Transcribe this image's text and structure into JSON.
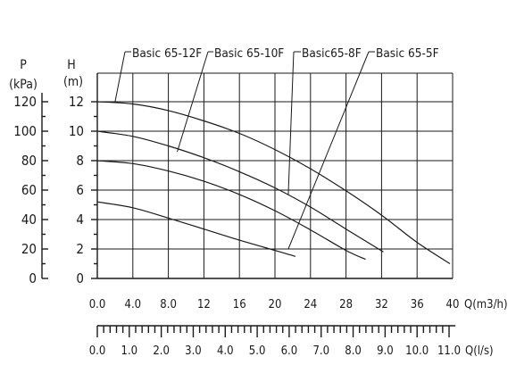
{
  "chart_data": {
    "type": "line",
    "axis_left_outer": {
      "title_line1": "P",
      "title_line2": "(kPa)",
      "ticks": [
        {
          "label": "120",
          "h": 12
        },
        {
          "label": "100",
          "h": 10
        },
        {
          "label": "80",
          "h": 8
        },
        {
          "label": "60",
          "h": 6
        },
        {
          "label": "40",
          "h": 4
        },
        {
          "label": "20",
          "h": 2
        },
        {
          "label": "0",
          "h": 0
        }
      ]
    },
    "axis_left_inner": {
      "title_line1": "H",
      "title_line2": "(m)",
      "ticks": [
        {
          "label": "12",
          "h": 12
        },
        {
          "label": "10",
          "h": 10
        },
        {
          "label": "8",
          "h": 8
        },
        {
          "label": "6",
          "h": 6
        },
        {
          "label": "4",
          "h": 4
        },
        {
          "label": "2",
          "h": 2
        },
        {
          "label": "0",
          "h": 0
        }
      ]
    },
    "ylim": [
      0,
      12
    ],
    "xlim_m3h": [
      0,
      40
    ],
    "grid": true,
    "x_axis_m3h": {
      "label": "Q(m3/h)",
      "ticks": [
        "0.0",
        "4.0",
        "8.0",
        "12",
        "16",
        "20",
        "24",
        "28",
        "32",
        "36",
        "40"
      ]
    },
    "x_axis_ls": {
      "label": "Q(l/s)",
      "ticks": [
        "0.0",
        "1.0",
        "2.0",
        "3.0",
        "4.0",
        "5.0",
        "6.0",
        "7.0",
        "8.0",
        "9.0",
        "10.0",
        "11.0"
      ]
    },
    "series": [
      {
        "name": "Basic 65-12F",
        "x": [
          0,
          4,
          8,
          12,
          16,
          20,
          24,
          28,
          32,
          36,
          39.7
        ],
        "y": [
          12,
          11.85,
          11.4,
          10.7,
          9.85,
          8.75,
          7.45,
          5.95,
          4.3,
          2.45,
          1.0
        ],
        "label_anchor": {
          "q": 2,
          "h": 12
        }
      },
      {
        "name": "Basic 65-10F",
        "x": [
          0,
          4,
          8,
          12,
          16,
          20,
          24,
          28,
          32.2
        ],
        "y": [
          10,
          9.65,
          9.0,
          8.2,
          7.25,
          6.15,
          4.85,
          3.35,
          1.8
        ],
        "label_anchor": {
          "q": 9,
          "h": 8.6
        }
      },
      {
        "name": "Basic65-8F",
        "x": [
          0,
          4,
          8,
          12,
          16,
          20,
          24,
          28,
          30.2
        ],
        "y": [
          8,
          7.8,
          7.3,
          6.6,
          5.7,
          4.6,
          3.3,
          1.9,
          1.3
        ],
        "label_anchor": {
          "q": 21.5,
          "h": 5.7
        }
      },
      {
        "name": "Basic 65-5F",
        "x": [
          0,
          4,
          8,
          12,
          16,
          20,
          22.3
        ],
        "y": [
          5.2,
          4.8,
          4.1,
          3.35,
          2.6,
          1.9,
          1.5
        ],
        "label_anchor": {
          "q": 21.5,
          "h": 2
        }
      }
    ]
  }
}
